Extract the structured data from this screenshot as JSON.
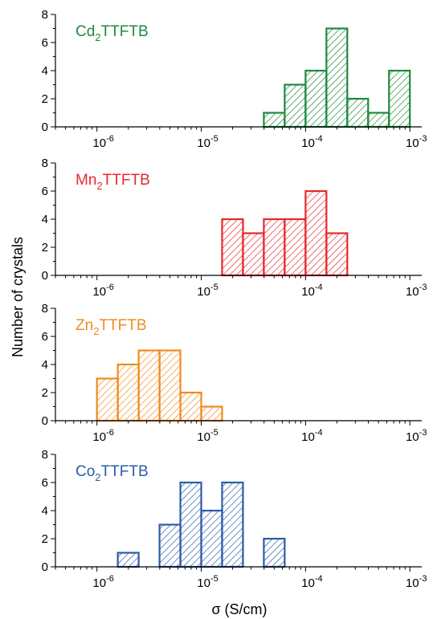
{
  "figure": {
    "ylabel": "Number of crystals",
    "xlabel": "σ (S/cm)"
  },
  "chart_data": [
    {
      "type": "bar",
      "label_pre": "Cd",
      "label_sub": "2",
      "label_post": "TTFTB",
      "color": "#1e8a3c",
      "x_scale": "log",
      "xlim": [
        4e-07,
        0.0013
      ],
      "ylim": [
        0,
        8
      ],
      "yticks": [
        "0",
        "2",
        "4",
        "6",
        "8"
      ],
      "xticks": [
        {
          "base": "10",
          "exp": "-6"
        },
        {
          "base": "10",
          "exp": "-5"
        },
        {
          "base": "10",
          "exp": "-4"
        },
        {
          "base": "10",
          "exp": "-3"
        }
      ],
      "bin_edges": [
        3.98e-05,
        6.31e-05,
        0.0001,
        0.0001585,
        0.0002512,
        0.0003981,
        0.000631,
        0.001
      ],
      "values": [
        1,
        3,
        4,
        7,
        2,
        1,
        4
      ]
    },
    {
      "type": "bar",
      "label_pre": "Mn",
      "label_sub": "2",
      "label_post": "TTFTB",
      "color": "#e8282a",
      "x_scale": "log",
      "xlim": [
        4e-07,
        0.0013
      ],
      "ylim": [
        0,
        8
      ],
      "yticks": [
        "0",
        "2",
        "4",
        "6",
        "8"
      ],
      "xticks": [
        {
          "base": "10",
          "exp": "-6"
        },
        {
          "base": "10",
          "exp": "-5"
        },
        {
          "base": "10",
          "exp": "-4"
        },
        {
          "base": "10",
          "exp": "-3"
        }
      ],
      "bin_edges": [
        1.585e-05,
        2.512e-05,
        3.981e-05,
        6.31e-05,
        0.0001,
        0.0001585,
        0.0002512
      ],
      "values": [
        4,
        3,
        4,
        4,
        6,
        3
      ]
    },
    {
      "type": "bar",
      "label_pre": "Zn",
      "label_sub": "2",
      "label_post": "TTFTB",
      "color": "#f28a1e",
      "x_scale": "log",
      "xlim": [
        4e-07,
        0.0013
      ],
      "ylim": [
        0,
        8
      ],
      "yticks": [
        "0",
        "2",
        "4",
        "6",
        "8"
      ],
      "xticks": [
        {
          "base": "10",
          "exp": "-6"
        },
        {
          "base": "10",
          "exp": "-5"
        },
        {
          "base": "10",
          "exp": "-4"
        },
        {
          "base": "10",
          "exp": "-3"
        }
      ],
      "bin_edges": [
        1e-06,
        1.585e-06,
        2.512e-06,
        3.981e-06,
        6.31e-06,
        1e-05,
        1.585e-05
      ],
      "values": [
        3,
        4,
        5,
        5,
        2,
        1
      ]
    },
    {
      "type": "bar",
      "label_pre": "Co",
      "label_sub": "2",
      "label_post": "TTFTB",
      "color": "#2b5ca8",
      "x_scale": "log",
      "xlim": [
        4e-07,
        0.0013
      ],
      "ylim": [
        0,
        8
      ],
      "yticks": [
        "0",
        "2",
        "4",
        "6",
        "8"
      ],
      "xticks": [
        {
          "base": "10",
          "exp": "-6"
        },
        {
          "base": "10",
          "exp": "-5"
        },
        {
          "base": "10",
          "exp": "-4"
        },
        {
          "base": "10",
          "exp": "-3"
        }
      ],
      "bin_edges": [
        1.585e-06,
        2.512e-06,
        3.981e-06,
        6.31e-06,
        1e-05,
        1.585e-05,
        2.512e-05,
        3.981e-05,
        6.31e-05
      ],
      "values": [
        1,
        0,
        3,
        6,
        4,
        6,
        0,
        2
      ]
    }
  ]
}
